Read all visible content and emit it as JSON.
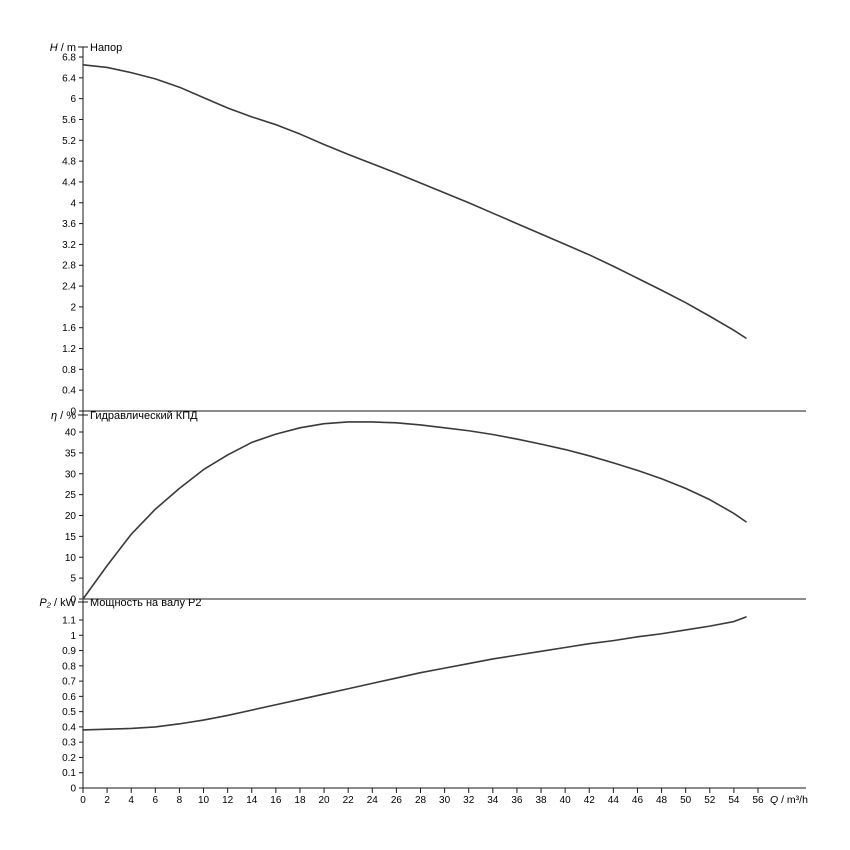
{
  "page": {
    "background": "#ffffff"
  },
  "colors": {
    "axis": "#1a1a1a",
    "curve": "#3a3a3a",
    "text": "#000000"
  },
  "chart_data": [
    {
      "type": "line",
      "title": "Напор",
      "ylabel": "H / m",
      "xlabel": "Q / m³/h",
      "ylim": [
        0,
        6.8
      ],
      "ytick_step": 0.4,
      "yticks": [
        0,
        0.4,
        0.8,
        1.2,
        1.6,
        2,
        2.4,
        2.8,
        3.2,
        3.6,
        4,
        4.4,
        4.8,
        5.2,
        5.6,
        6,
        6.4,
        6.8
      ],
      "xlim": [
        0,
        56
      ],
      "xtick_step": 2,
      "xticks": [
        0,
        2,
        4,
        6,
        8,
        10,
        12,
        14,
        16,
        18,
        20,
        22,
        24,
        26,
        28,
        30,
        32,
        34,
        36,
        38,
        40,
        42,
        44,
        46,
        48,
        50,
        52,
        54,
        56
      ],
      "grid": false,
      "legend": null,
      "x": [
        0,
        2,
        4,
        6,
        8,
        10,
        12,
        14,
        16,
        18,
        20,
        22,
        24,
        26,
        28,
        30,
        32,
        34,
        36,
        38,
        40,
        42,
        44,
        46,
        48,
        50,
        52,
        54,
        55
      ],
      "y": [
        6.65,
        6.6,
        6.5,
        6.38,
        6.22,
        6.02,
        5.82,
        5.65,
        5.5,
        5.32,
        5.12,
        4.93,
        4.75,
        4.57,
        4.38,
        4.19,
        4.0,
        3.8,
        3.6,
        3.4,
        3.2,
        3.0,
        2.78,
        2.55,
        2.32,
        2.08,
        1.82,
        1.55,
        1.4
      ]
    },
    {
      "type": "line",
      "title": "Гидравлический КПД",
      "ylabel": "η / %",
      "xlabel": "Q / m³/h",
      "ylim": [
        0,
        40
      ],
      "ytick_step": 5,
      "yticks": [
        0,
        5,
        10,
        15,
        20,
        25,
        30,
        35,
        40
      ],
      "xlim": [
        0,
        56
      ],
      "xtick_step": 2,
      "xticks": [
        0,
        2,
        4,
        6,
        8,
        10,
        12,
        14,
        16,
        18,
        20,
        22,
        24,
        26,
        28,
        30,
        32,
        34,
        36,
        38,
        40,
        42,
        44,
        46,
        48,
        50,
        52,
        54,
        56
      ],
      "grid": false,
      "legend": null,
      "x": [
        0,
        2,
        4,
        6,
        8,
        10,
        12,
        14,
        16,
        18,
        20,
        22,
        24,
        26,
        28,
        30,
        32,
        34,
        36,
        38,
        40,
        42,
        44,
        46,
        48,
        50,
        52,
        54,
        55
      ],
      "y": [
        0,
        8,
        15.5,
        21.5,
        26.5,
        31,
        34.5,
        37.5,
        39.5,
        41,
        42,
        42.4,
        42.4,
        42.2,
        41.7,
        41,
        40.3,
        39.4,
        38.3,
        37.1,
        35.8,
        34.3,
        32.6,
        30.8,
        28.8,
        26.5,
        23.8,
        20.5,
        18.5
      ]
    },
    {
      "type": "line",
      "title": "Мощность на валу P2",
      "ylabel": "P₂ / kW",
      "xlabel": "Q / m³/h",
      "ylim": [
        0,
        1.1
      ],
      "ytick_step": 0.1,
      "yticks": [
        0,
        0.1,
        0.2,
        0.3,
        0.4,
        0.5,
        0.6,
        0.7,
        0.8,
        0.9,
        1,
        1.1
      ],
      "xlim": [
        0,
        56
      ],
      "xtick_step": 2,
      "xticks": [
        0,
        2,
        4,
        6,
        8,
        10,
        12,
        14,
        16,
        18,
        20,
        22,
        24,
        26,
        28,
        30,
        32,
        34,
        36,
        38,
        40,
        42,
        44,
        46,
        48,
        50,
        52,
        54,
        56
      ],
      "grid": false,
      "legend": null,
      "x": [
        0,
        2,
        4,
        6,
        8,
        10,
        12,
        14,
        16,
        18,
        20,
        22,
        24,
        26,
        28,
        30,
        32,
        34,
        36,
        38,
        40,
        42,
        44,
        46,
        48,
        50,
        52,
        54,
        55
      ],
      "y": [
        0.38,
        0.385,
        0.39,
        0.4,
        0.42,
        0.445,
        0.475,
        0.51,
        0.545,
        0.58,
        0.615,
        0.65,
        0.685,
        0.72,
        0.755,
        0.785,
        0.815,
        0.845,
        0.87,
        0.895,
        0.92,
        0.945,
        0.965,
        0.99,
        1.01,
        1.035,
        1.06,
        1.09,
        1.12
      ]
    }
  ]
}
